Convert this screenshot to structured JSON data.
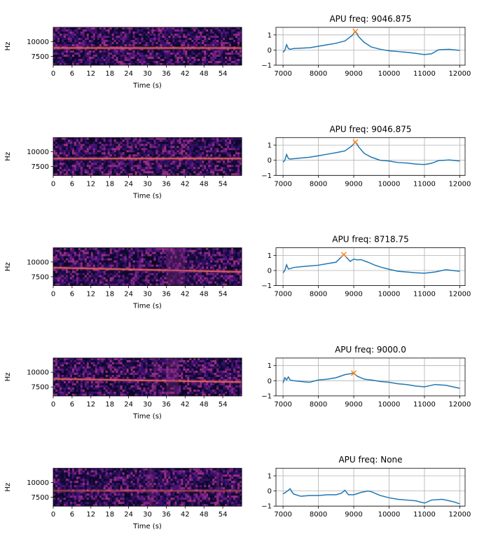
{
  "figure": {
    "spectrogram_xlabel": "Time (s)",
    "spectrogram_ylabel": "Hz",
    "spectrogram_xticks": [
      "0",
      "6",
      "12",
      "18",
      "24",
      "30",
      "36",
      "42",
      "48",
      "54"
    ],
    "spectrogram_yticks": [
      "7500",
      "10000"
    ],
    "apu_xticks": [
      "7000",
      "8000",
      "9000",
      "10000",
      "11000",
      "12000"
    ],
    "apu_yticks": [
      "1",
      "0",
      "−1"
    ],
    "colors": {
      "line": "#1f77b4",
      "marker": "#ff7f0e",
      "grid": "#b0b0b0",
      "spec_dark": "#120b2e",
      "spec_mid": "#4a1877",
      "spec_band": "#f07553"
    }
  },
  "chart_data": [
    {
      "row": 1,
      "type": "line",
      "title": "APU freq: 9046.875",
      "xlim": [
        6800,
        12150
      ],
      "ylim": [
        -1,
        1.5
      ],
      "grid": true,
      "x": [
        7000,
        7050,
        7100,
        7150,
        7200,
        7300,
        7500,
        7750,
        8000,
        8250,
        8500,
        8750,
        8950,
        9047,
        9150,
        9300,
        9500,
        9750,
        10000,
        10250,
        10500,
        10750,
        11000,
        11200,
        11400,
        11700,
        12000
      ],
      "y": [
        -0.15,
        -0.02,
        0.35,
        0.1,
        0.05,
        0.1,
        0.12,
        0.15,
        0.25,
        0.35,
        0.45,
        0.6,
        0.95,
        1.22,
        0.85,
        0.5,
        0.2,
        0.05,
        -0.05,
        -0.1,
        -0.15,
        -0.22,
        -0.3,
        -0.25,
        0.02,
        0.05,
        -0.02
      ],
      "peak": {
        "x": 9046.875,
        "y": 1.22
      },
      "spectrogram": {
        "band_hz": 8900,
        "noise_bursts": []
      }
    },
    {
      "row": 2,
      "type": "line",
      "title": "APU freq: 9046.875",
      "xlim": [
        6800,
        12150
      ],
      "ylim": [
        -1,
        1.5
      ],
      "grid": true,
      "x": [
        7000,
        7050,
        7100,
        7150,
        7200,
        7300,
        7500,
        7750,
        8000,
        8250,
        8500,
        8750,
        8950,
        9047,
        9150,
        9300,
        9500,
        9750,
        10000,
        10250,
        10500,
        10750,
        11000,
        11200,
        11400,
        11700,
        12000
      ],
      "y": [
        -0.12,
        0.0,
        0.38,
        0.12,
        0.08,
        0.1,
        0.15,
        0.2,
        0.3,
        0.4,
        0.5,
        0.62,
        0.95,
        1.2,
        0.85,
        0.45,
        0.2,
        0.0,
        -0.05,
        -0.15,
        -0.18,
        -0.25,
        -0.28,
        -0.2,
        -0.02,
        0.02,
        -0.05
      ],
      "peak": {
        "x": 9046.875,
        "y": 1.2
      },
      "spectrogram": {
        "band_hz": 8850,
        "noise_bursts": []
      }
    },
    {
      "row": 3,
      "type": "line",
      "title": "APU freq: 8718.75",
      "xlim": [
        6800,
        12150
      ],
      "ylim": [
        -1,
        1.5
      ],
      "grid": true,
      "x": [
        7000,
        7050,
        7100,
        7150,
        7200,
        7300,
        7500,
        7750,
        8000,
        8250,
        8500,
        8718,
        8800,
        8900,
        9000,
        9100,
        9200,
        9400,
        9600,
        9800,
        10000,
        10250,
        10500,
        10750,
        11000,
        11300,
        11600,
        12000
      ],
      "y": [
        -0.15,
        0.0,
        0.38,
        0.1,
        0.12,
        0.2,
        0.25,
        0.3,
        0.35,
        0.45,
        0.55,
        1.05,
        0.85,
        0.6,
        0.75,
        0.7,
        0.72,
        0.55,
        0.35,
        0.2,
        0.08,
        -0.05,
        -0.1,
        -0.15,
        -0.18,
        -0.1,
        0.05,
        -0.05
      ],
      "peak": {
        "x": 8718.75,
        "y": 1.05
      },
      "spectrogram": {
        "band_hz": 8800,
        "noise_bursts": [
          [
            36,
            42
          ]
        ]
      }
    },
    {
      "row": 4,
      "type": "line",
      "title": "APU freq: 9000.0",
      "xlim": [
        6800,
        12150
      ],
      "ylim": [
        -1,
        1.5
      ],
      "grid": true,
      "x": [
        7000,
        7050,
        7100,
        7150,
        7200,
        7300,
        7500,
        7750,
        8000,
        8250,
        8500,
        8750,
        9000,
        9100,
        9300,
        9500,
        9750,
        10000,
        10250,
        10500,
        10750,
        11000,
        11300,
        11600,
        12000
      ],
      "y": [
        -0.15,
        0.2,
        0.05,
        0.25,
        0.05,
        0.0,
        -0.05,
        -0.1,
        0.05,
        0.1,
        0.2,
        0.4,
        0.5,
        0.3,
        0.1,
        0.05,
        -0.05,
        -0.1,
        -0.2,
        -0.25,
        -0.35,
        -0.4,
        -0.25,
        -0.3,
        -0.5
      ],
      "peak": {
        "x": 9000.0,
        "y": 0.5
      },
      "spectrogram": {
        "band_hz": 8700,
        "noise_bursts": [
          [
            32,
            33
          ],
          [
            36,
            40
          ]
        ]
      }
    },
    {
      "row": 5,
      "type": "line",
      "title": "APU freq: None",
      "xlim": [
        6800,
        12150
      ],
      "ylim": [
        -1,
        1.5
      ],
      "grid": true,
      "x": [
        7000,
        7100,
        7200,
        7250,
        7300,
        7500,
        7750,
        8000,
        8250,
        8500,
        8650,
        8750,
        8850,
        9000,
        9200,
        9400,
        9500,
        9750,
        10000,
        10250,
        10500,
        10750,
        11000,
        11200,
        11500,
        11800,
        12000
      ],
      "y": [
        -0.2,
        -0.05,
        0.15,
        -0.05,
        -0.2,
        -0.35,
        -0.3,
        -0.3,
        -0.25,
        -0.25,
        -0.15,
        0.05,
        -0.25,
        -0.25,
        -0.1,
        0.0,
        -0.05,
        -0.3,
        -0.45,
        -0.55,
        -0.6,
        -0.65,
        -0.8,
        -0.6,
        -0.55,
        -0.7,
        -0.85
      ],
      "peak": null,
      "spectrogram": {
        "band_hz": 8600,
        "noise_bursts": [
          [
            30,
            32
          ],
          [
            52,
            53
          ]
        ]
      }
    }
  ]
}
